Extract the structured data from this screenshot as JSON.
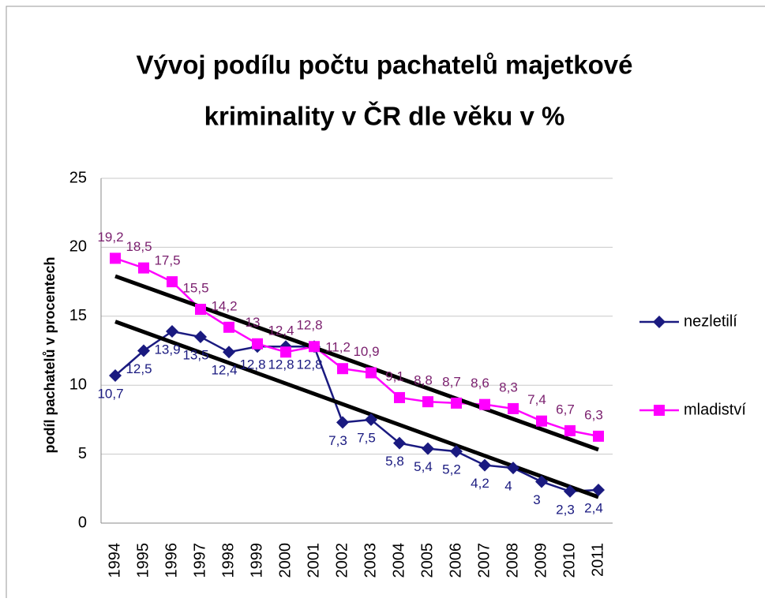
{
  "chart_data": {
    "type": "line",
    "title": "Vývoj podílu počtu pachatelů majetkové",
    "title_line2": "kriminality v ČR dle věku v %",
    "ylabel": "podíl pachatelů v procentech",
    "categories": [
      "1994",
      "1995",
      "1996",
      "1997",
      "1998",
      "1999",
      "2000",
      "2001",
      "2002",
      "2003",
      "2004",
      "2005",
      "2006",
      "2007",
      "2008",
      "2009",
      "2010",
      "2011"
    ],
    "series": [
      {
        "name": "nezletilí",
        "color": "#1a1a80",
        "label_color": "#1a1a80",
        "marker": "diamond",
        "values": [
          10.7,
          12.5,
          13.9,
          13.5,
          12.4,
          12.8,
          12.8,
          12.8,
          7.3,
          7.5,
          5.8,
          5.4,
          5.2,
          4.2,
          4,
          3,
          2.3,
          2.4
        ],
        "value_labels": [
          "10,7",
          "12,5",
          "13,9",
          "13,5",
          "12,4",
          "12,8",
          "12,8",
          "12,8",
          "7,3",
          "7,5",
          "5,8",
          "5,4",
          "5,2",
          "4,2",
          "4",
          "3",
          "2,3",
          "2,4"
        ]
      },
      {
        "name": "mladiství",
        "color": "#ff00ff",
        "label_color": "#7a1f6e",
        "marker": "square",
        "values": [
          19.2,
          18.5,
          17.5,
          15.5,
          14.2,
          13,
          12.4,
          12.8,
          11.2,
          10.9,
          9.1,
          8.8,
          8.7,
          8.6,
          8.3,
          7.4,
          6.7,
          6.3
        ],
        "value_labels": [
          "19,2",
          "18,5",
          "17,5",
          "15,5",
          "14,2",
          "13",
          "12,4",
          "12,8",
          "11,2",
          "10,9",
          "9,1",
          "8,8",
          "8,7",
          "8,6",
          "8,3",
          "7,4",
          "6,7",
          "6,3"
        ]
      }
    ],
    "ylim": [
      0,
      25
    ],
    "yticks": [
      0,
      5,
      10,
      15,
      20,
      25
    ],
    "grid": true,
    "trendline": true,
    "trendline_color": "#000000",
    "legend": "right"
  }
}
